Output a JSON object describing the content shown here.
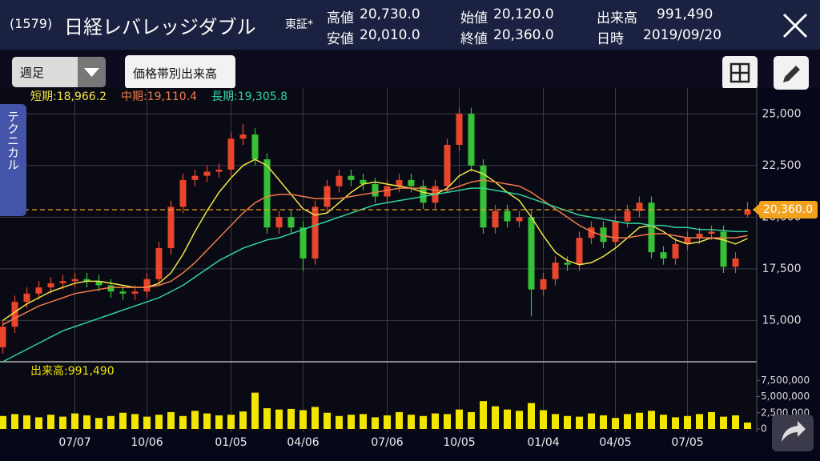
{
  "header": {
    "code": "(1579)",
    "name": "日経レバレッジダブル",
    "market": "東証*",
    "quotes": [
      {
        "label": "高値",
        "value": "20,730.0"
      },
      {
        "label": "始値",
        "value": "20,120.0"
      },
      {
        "label": "出来高",
        "value": "991,490"
      },
      {
        "label": "安値",
        "value": "20,010.0"
      },
      {
        "label": "終値",
        "value": "20,360.0"
      },
      {
        "label": "日時",
        "value": "2019/09/20"
      }
    ]
  },
  "toolbar": {
    "period": "週足",
    "volume_profile": "価格帯別出来高"
  },
  "side_tab": "テクニカル",
  "chart_data": [
    {
      "type": "candlestick",
      "categories": [
        null,
        null,
        null,
        null,
        null,
        null,
        "07/07",
        null,
        null,
        null,
        null,
        null,
        "10/06",
        null,
        null,
        null,
        null,
        null,
        null,
        "01/05",
        null,
        null,
        null,
        null,
        null,
        "04/06",
        null,
        null,
        null,
        null,
        null,
        null,
        "07/06",
        null,
        null,
        null,
        null,
        null,
        "10/05",
        null,
        null,
        null,
        null,
        null,
        null,
        "01/04",
        null,
        null,
        null,
        null,
        null,
        "04/05",
        null,
        null,
        null,
        null,
        null,
        "07/05",
        null,
        null,
        null,
        null,
        null
      ],
      "open": [
        13700,
        14700,
        15900,
        16300,
        16600,
        16800,
        16900,
        17000,
        16900,
        16700,
        16400,
        16300,
        16400,
        17000,
        18500,
        20500,
        21800,
        22000,
        22200,
        22300,
        23800,
        24000,
        22800,
        19500,
        20000,
        19500,
        18000,
        20500,
        21500,
        22000,
        21800,
        21600,
        21000,
        21500,
        21800,
        21500,
        20700,
        21500,
        23500,
        25000,
        22500,
        19500,
        20300,
        19800,
        20000,
        16500,
        17000,
        17800,
        17700,
        19000,
        19500,
        18800,
        19800,
        20300,
        20700,
        18300,
        18000,
        18700,
        19000,
        19200,
        19300,
        17600,
        20120
      ],
      "high": [
        15000,
        16200,
        16600,
        16900,
        17100,
        17200,
        17300,
        17300,
        17200,
        17000,
        16700,
        16700,
        17300,
        18800,
        20800,
        22100,
        22300,
        22500,
        22600,
        24100,
        24500,
        24300,
        23100,
        20300,
        20300,
        19800,
        20800,
        21800,
        22300,
        22300,
        22100,
        21900,
        21800,
        22100,
        22100,
        21800,
        21800,
        23800,
        25300,
        25300,
        22800,
        20600,
        20600,
        20300,
        20300,
        17300,
        18100,
        18100,
        19300,
        19800,
        19800,
        20100,
        20600,
        21000,
        21000,
        18600,
        19000,
        19300,
        19500,
        19600,
        19600,
        18300,
        20730
      ],
      "low": [
        13400,
        14400,
        15600,
        16000,
        16300,
        16500,
        16600,
        16600,
        16400,
        16100,
        16000,
        16000,
        16100,
        16700,
        18200,
        20200,
        21500,
        21700,
        21900,
        22000,
        23500,
        22500,
        19200,
        19200,
        19200,
        17400,
        17700,
        20200,
        21200,
        21500,
        21300,
        20700,
        20700,
        21200,
        21200,
        20400,
        20400,
        21200,
        23200,
        22200,
        19200,
        19200,
        19500,
        19500,
        15200,
        16200,
        16700,
        17400,
        17400,
        18700,
        18500,
        18500,
        19500,
        20000,
        18000,
        17700,
        17700,
        18400,
        18700,
        18900,
        17300,
        17300,
        20010
      ],
      "close": [
        14700,
        15900,
        16300,
        16600,
        16800,
        16900,
        17000,
        16900,
        16700,
        16400,
        16300,
        16400,
        17000,
        18500,
        20500,
        21800,
        22000,
        22200,
        22300,
        23800,
        24000,
        22800,
        19500,
        20000,
        19500,
        18000,
        20500,
        21500,
        22000,
        21800,
        21600,
        21000,
        21500,
        21800,
        21500,
        20700,
        21500,
        23500,
        25000,
        22500,
        19500,
        20300,
        19800,
        20000,
        16500,
        17000,
        17800,
        17700,
        19000,
        19500,
        18800,
        19800,
        20300,
        20700,
        18300,
        18000,
        18700,
        19000,
        19200,
        19300,
        17600,
        18000,
        20360
      ],
      "up_color": "#e8452c",
      "down_color": "#35c135",
      "series": [
        {
          "label": "短期:18,966.2",
          "color": "#f2e24a",
          "values": [
            15000,
            15400,
            15800,
            16100,
            16400,
            16600,
            16800,
            16900,
            16900,
            16800,
            16700,
            16600,
            16600,
            16800,
            17300,
            18200,
            19300,
            20300,
            21200,
            21900,
            22500,
            22800,
            22500,
            21800,
            21100,
            20400,
            20100,
            20200,
            20700,
            21200,
            21600,
            21700,
            21600,
            21500,
            21400,
            21200,
            21100,
            21400,
            22000,
            22300,
            22100,
            21700,
            21200,
            20800,
            20000,
            19100,
            18300,
            17900,
            17700,
            17800,
            18100,
            18500,
            19000,
            19500,
            19600,
            19300,
            18900,
            18700,
            18800,
            19000,
            18900,
            18700,
            18966.2
          ]
        },
        {
          "label": "中期:19,110.4",
          "color": "#f07a4a",
          "values": [
            14800,
            15100,
            15400,
            15700,
            15900,
            16100,
            16300,
            16400,
            16500,
            16600,
            16600,
            16600,
            16600,
            16700,
            16900,
            17300,
            17800,
            18400,
            19000,
            19600,
            20200,
            20700,
            21000,
            21100,
            21100,
            21000,
            20900,
            20900,
            20900,
            21000,
            21100,
            21200,
            21300,
            21400,
            21400,
            21400,
            21300,
            21300,
            21500,
            21700,
            21800,
            21700,
            21600,
            21500,
            21200,
            20800,
            20400,
            20000,
            19600,
            19300,
            19100,
            19000,
            19000,
            19100,
            19200,
            19200,
            19100,
            19000,
            19000,
            19000,
            19000,
            19000,
            19110.4
          ]
        },
        {
          "label": "長期:19,305.8",
          "color": "#2fd39a",
          "values": [
            13000,
            13300,
            13600,
            13900,
            14200,
            14500,
            14700,
            14900,
            15100,
            15300,
            15500,
            15700,
            15900,
            16100,
            16400,
            16700,
            17100,
            17500,
            17900,
            18200,
            18500,
            18700,
            18900,
            19000,
            19200,
            19400,
            19600,
            19800,
            20000,
            20200,
            20400,
            20600,
            20700,
            20800,
            20900,
            21000,
            21100,
            21200,
            21300,
            21400,
            21400,
            21300,
            21200,
            21100,
            20900,
            20700,
            20500,
            20300,
            20100,
            20000,
            19900,
            19800,
            19700,
            19700,
            19600,
            19600,
            19500,
            19500,
            19400,
            19400,
            19350,
            19300,
            19305.8
          ]
        }
      ],
      "last_price": {
        "value": 20360,
        "label": "20,360.0",
        "color": "#f2a21e"
      },
      "ylim": [
        13000,
        26250
      ],
      "yticks": [
        {
          "value": 15000,
          "label": "15,000"
        },
        {
          "value": 17500,
          "label": "17,500"
        },
        {
          "value": 20000,
          "label": "20,000"
        },
        {
          "value": 22500,
          "label": "22,500"
        },
        {
          "value": 25000,
          "label": "25,000"
        }
      ],
      "grid": true
    },
    {
      "type": "bar",
      "title": "出来高:991,490",
      "color": "#f2e600",
      "values": [
        2000000,
        2300000,
        2100000,
        1800000,
        2200000,
        1900000,
        2400000,
        2100000,
        1700000,
        2000000,
        2500000,
        2300000,
        1900000,
        2200000,
        2600000,
        2000000,
        2800000,
        2400000,
        2100000,
        2200000,
        2700000,
        5600000,
        3200000,
        3000000,
        3100000,
        2900000,
        3400000,
        2500000,
        2000000,
        2200000,
        2300000,
        1800000,
        2100000,
        2600000,
        2200000,
        2000000,
        2400000,
        2300000,
        3000000,
        2600000,
        4300000,
        3500000,
        3000000,
        2800000,
        4000000,
        2900000,
        2300000,
        2000000,
        1900000,
        2400000,
        2100000,
        1700000,
        2300000,
        2500000,
        2800000,
        2200000,
        1800000,
        2000000,
        2300000,
        2600000,
        1900000,
        2100000,
        991490
      ],
      "ylim": [
        0,
        10000000
      ],
      "yticks": [
        0,
        {
          "value": 2500000,
          "label": "2,500,000"
        },
        {
          "value": 5000000,
          "label": "5,000,000"
        },
        {
          "value": 7500000,
          "label": "7,500,000"
        }
      ]
    }
  ]
}
